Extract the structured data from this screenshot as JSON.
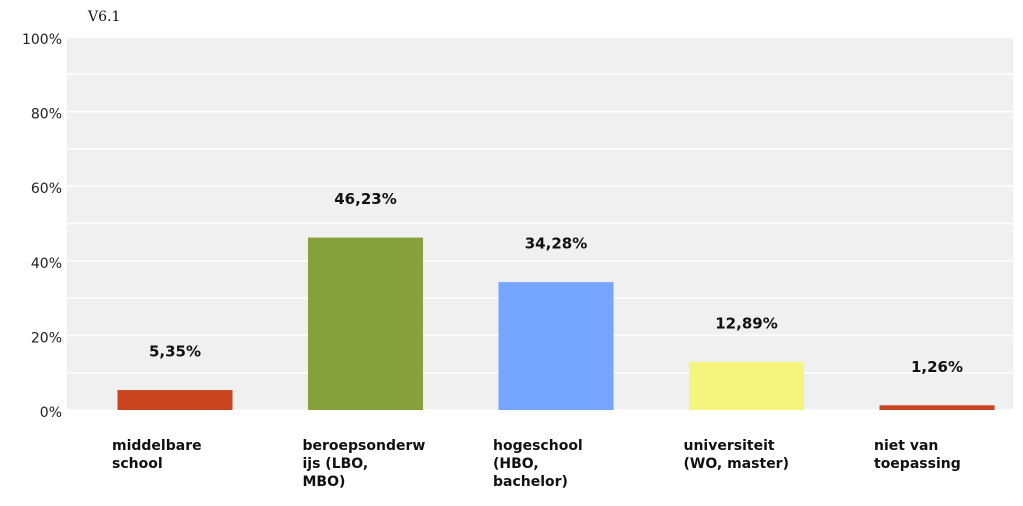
{
  "chart_data": {
    "type": "bar",
    "title": "V6.1",
    "categories": [
      "middelbare\nschool",
      "beroepsonderw\nijs (LBO,\nMBO)",
      "hogeschool\n(HBO,\nbachelor)",
      "universiteit\n(WO, master)",
      "niet van\ntoepassing"
    ],
    "values": [
      5.35,
      46.23,
      34.28,
      12.89,
      1.26
    ],
    "value_labels": [
      "5,35%",
      "46,23%",
      "34,28%",
      "12,89%",
      "1,26%"
    ],
    "colors": [
      "#c8431e",
      "#86a03c",
      "#75a5fe",
      "#f5f57e",
      "#c8431e"
    ],
    "ylim": [
      0,
      100
    ],
    "yticks": [
      {
        "value": 0,
        "label": "0%"
      },
      {
        "value": 20,
        "label": "20%"
      },
      {
        "value": 40,
        "label": "40%"
      },
      {
        "value": 60,
        "label": "60%"
      },
      {
        "value": 80,
        "label": "80%"
      },
      {
        "value": 100,
        "label": "100%"
      }
    ],
    "minor_yticks": [
      10,
      30,
      50,
      70,
      90
    ],
    "grid": true
  }
}
